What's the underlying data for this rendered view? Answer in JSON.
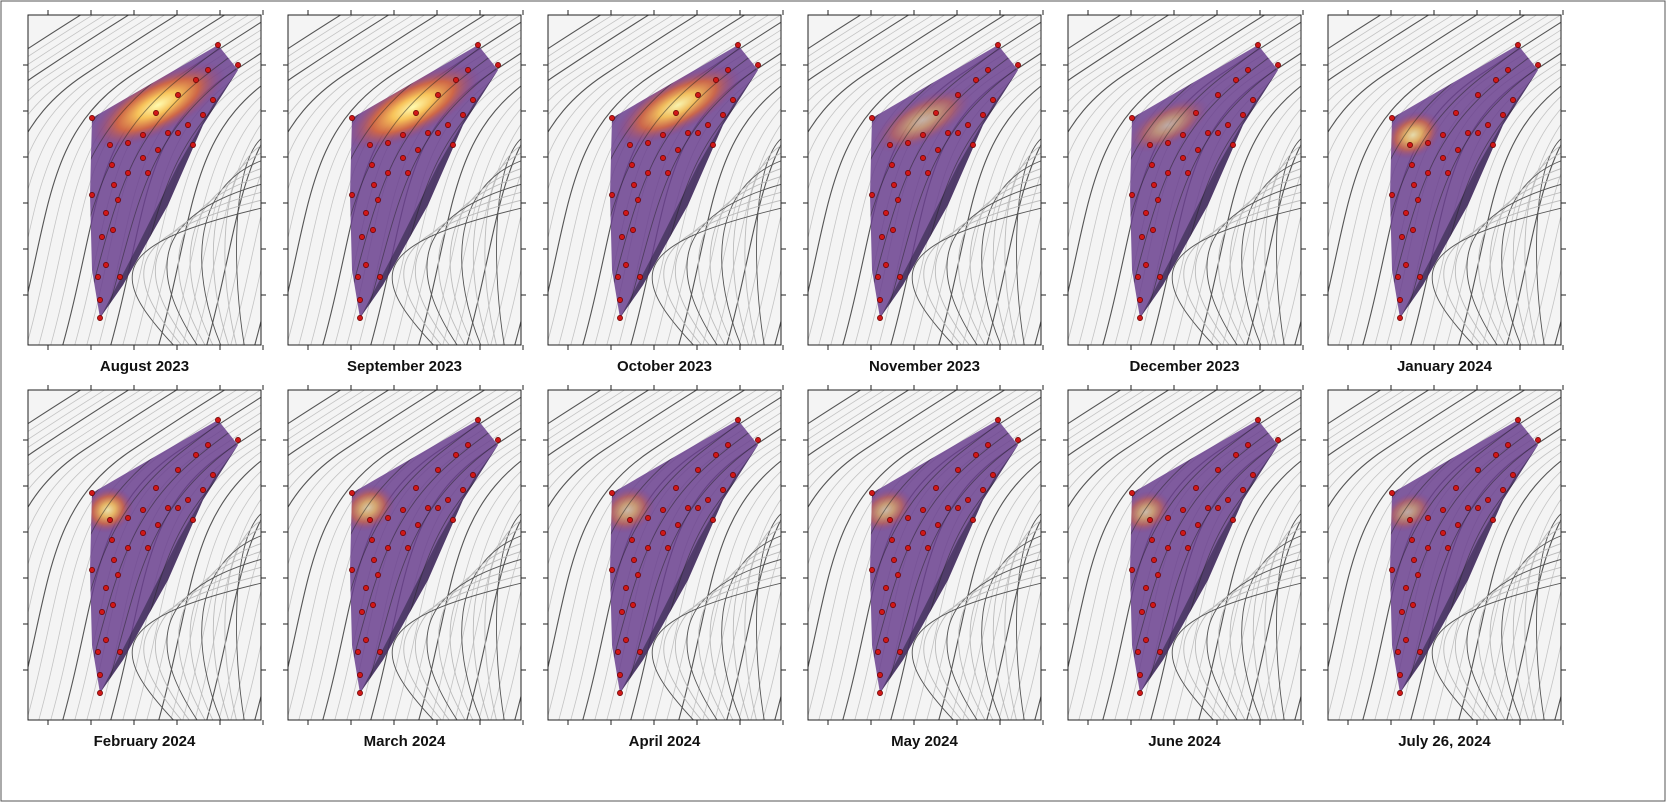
{
  "panels": [
    {
      "label": "August 2023"
    },
    {
      "label": "September 2023"
    },
    {
      "label": "October 2023"
    },
    {
      "label": "November 2023"
    },
    {
      "label": "December 2023"
    },
    {
      "label": "January 2024"
    },
    {
      "label": "February 2024"
    },
    {
      "label": "March 2024"
    },
    {
      "label": "April 2024"
    },
    {
      "label": "May 2024"
    },
    {
      "label": "June 2024"
    },
    {
      "label": "July 26, 2024"
    }
  ]
}
